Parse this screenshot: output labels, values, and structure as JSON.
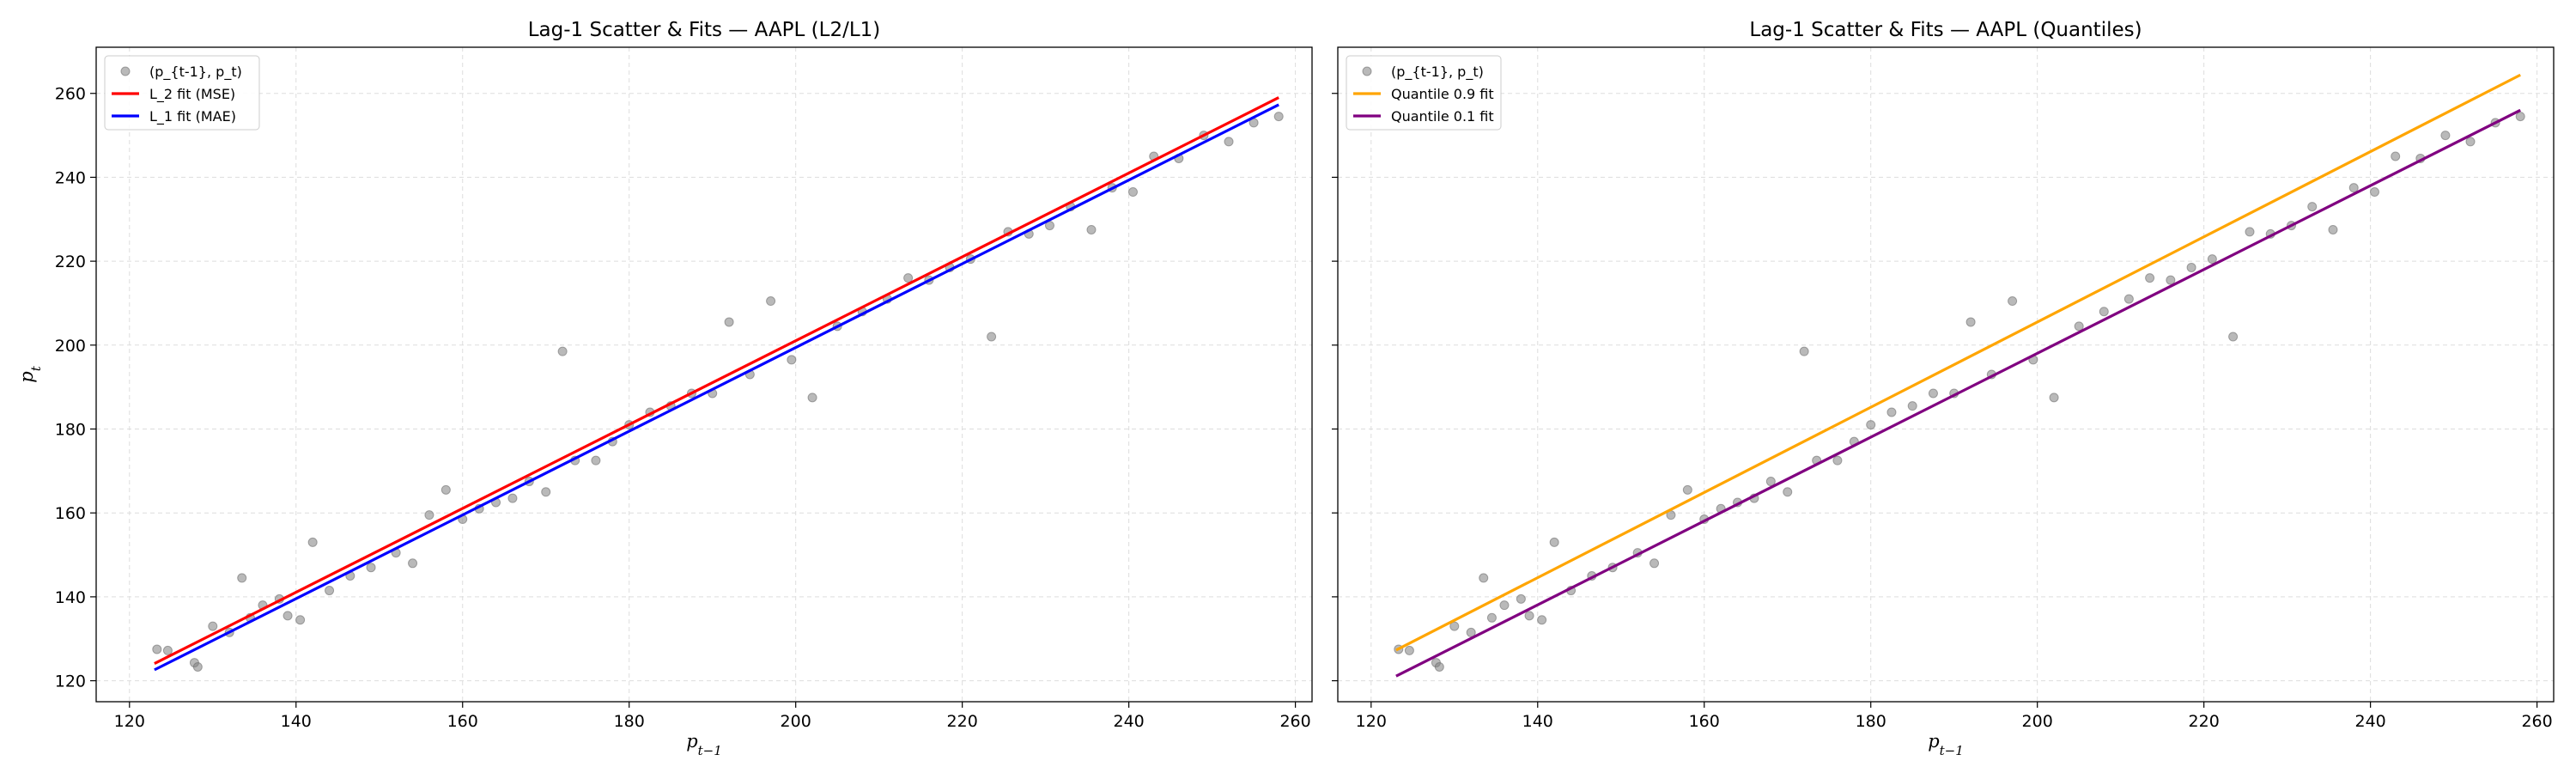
{
  "chart_data": [
    {
      "type": "scatter",
      "title": "Lag-1 Scatter & Fits — AAPL (L2/L1)",
      "xlabel": "p_{t-1}",
      "ylabel": "p_t",
      "xlim": [
        116,
        262
      ],
      "ylim": [
        115,
        271
      ],
      "xticks": [
        120,
        140,
        160,
        180,
        200,
        220,
        240,
        260
      ],
      "yticks": [
        120,
        140,
        160,
        180,
        200,
        220,
        240,
        260
      ],
      "grid": true,
      "legend_position": "upper-left",
      "series": [
        {
          "name": "(p_{t-1}, p_t)",
          "kind": "scatter",
          "color": "#808080",
          "points": [
            [
              123.3,
              127.5
            ],
            [
              124.6,
              127.2
            ],
            [
              127.8,
              124.3
            ],
            [
              128.2,
              123.3
            ],
            [
              130.0,
              133.0
            ],
            [
              132.0,
              131.5
            ],
            [
              133.5,
              144.5
            ],
            [
              134.5,
              135.0
            ],
            [
              136.0,
              138.0
            ],
            [
              138.0,
              139.5
            ],
            [
              139.0,
              135.5
            ],
            [
              140.5,
              134.5
            ],
            [
              142.0,
              153.0
            ],
            [
              144.0,
              141.5
            ],
            [
              146.5,
              145.0
            ],
            [
              149.0,
              147.0
            ],
            [
              152.0,
              150.5
            ],
            [
              154.0,
              148.0
            ],
            [
              156.0,
              159.5
            ],
            [
              158.0,
              165.5
            ],
            [
              160.0,
              158.5
            ],
            [
              162.0,
              161.0
            ],
            [
              164.0,
              162.5
            ],
            [
              166.0,
              163.5
            ],
            [
              168.0,
              167.5
            ],
            [
              170.0,
              165.0
            ],
            [
              172.0,
              198.5
            ],
            [
              173.5,
              172.5
            ],
            [
              176.0,
              172.5
            ],
            [
              178.0,
              177.0
            ],
            [
              180.0,
              181.0
            ],
            [
              182.5,
              184.0
            ],
            [
              185.0,
              185.5
            ],
            [
              187.5,
              188.5
            ],
            [
              190.0,
              188.5
            ],
            [
              192.0,
              205.5
            ],
            [
              194.5,
              193.0
            ],
            [
              197.0,
              210.5
            ],
            [
              199.5,
              196.5
            ],
            [
              202.0,
              187.5
            ],
            [
              205.0,
              204.5
            ],
            [
              208.0,
              208.0
            ],
            [
              211.0,
              211.0
            ],
            [
              213.5,
              216.0
            ],
            [
              216.0,
              215.5
            ],
            [
              218.5,
              218.5
            ],
            [
              221.0,
              220.5
            ],
            [
              223.5,
              202.0
            ],
            [
              225.5,
              227.0
            ],
            [
              228.0,
              226.5
            ],
            [
              230.5,
              228.5
            ],
            [
              233.0,
              233.0
            ],
            [
              235.5,
              227.5
            ],
            [
              238.0,
              237.5
            ],
            [
              240.5,
              236.5
            ],
            [
              243.0,
              245.0
            ],
            [
              246.0,
              244.5
            ],
            [
              249.0,
              250.0
            ],
            [
              252.0,
              248.5
            ],
            [
              255.0,
              253.0
            ],
            [
              258.0,
              254.5
            ]
          ]
        },
        {
          "name": "L_2 fit (MSE)",
          "kind": "line",
          "color": "#ff0000",
          "x": [
            123,
            258
          ],
          "y": [
            124.1,
            259.0
          ]
        },
        {
          "name": "L_1 fit (MAE)",
          "kind": "line",
          "color": "#0000ff",
          "x": [
            123,
            258
          ],
          "y": [
            122.6,
            257.3
          ]
        }
      ]
    },
    {
      "type": "scatter",
      "title": "Lag-1 Scatter & Fits — AAPL (Quantiles)",
      "xlabel": "p_{t-1}",
      "ylabel": "",
      "xlim": [
        116,
        262
      ],
      "ylim": [
        115,
        271
      ],
      "xticks": [
        120,
        140,
        160,
        180,
        200,
        220,
        240,
        260
      ],
      "yticks": [
        120,
        140,
        160,
        180,
        200,
        220,
        240,
        260
      ],
      "grid": true,
      "legend_position": "upper-left",
      "series": [
        {
          "name": "(p_{t-1}, p_t)",
          "kind": "scatter",
          "color": "#808080",
          "points": [
            [
              123.3,
              127.5
            ],
            [
              124.6,
              127.2
            ],
            [
              127.8,
              124.3
            ],
            [
              128.2,
              123.3
            ],
            [
              130.0,
              133.0
            ],
            [
              132.0,
              131.5
            ],
            [
              133.5,
              144.5
            ],
            [
              134.5,
              135.0
            ],
            [
              136.0,
              138.0
            ],
            [
              138.0,
              139.5
            ],
            [
              139.0,
              135.5
            ],
            [
              140.5,
              134.5
            ],
            [
              142.0,
              153.0
            ],
            [
              144.0,
              141.5
            ],
            [
              146.5,
              145.0
            ],
            [
              149.0,
              147.0
            ],
            [
              152.0,
              150.5
            ],
            [
              154.0,
              148.0
            ],
            [
              156.0,
              159.5
            ],
            [
              158.0,
              165.5
            ],
            [
              160.0,
              158.5
            ],
            [
              162.0,
              161.0
            ],
            [
              164.0,
              162.5
            ],
            [
              166.0,
              163.5
            ],
            [
              168.0,
              167.5
            ],
            [
              170.0,
              165.0
            ],
            [
              172.0,
              198.5
            ],
            [
              173.5,
              172.5
            ],
            [
              176.0,
              172.5
            ],
            [
              178.0,
              177.0
            ],
            [
              180.0,
              181.0
            ],
            [
              182.5,
              184.0
            ],
            [
              185.0,
              185.5
            ],
            [
              187.5,
              188.5
            ],
            [
              190.0,
              188.5
            ],
            [
              192.0,
              205.5
            ],
            [
              194.5,
              193.0
            ],
            [
              197.0,
              210.5
            ],
            [
              199.5,
              196.5
            ],
            [
              202.0,
              187.5
            ],
            [
              205.0,
              204.5
            ],
            [
              208.0,
              208.0
            ],
            [
              211.0,
              211.0
            ],
            [
              213.5,
              216.0
            ],
            [
              216.0,
              215.5
            ],
            [
              218.5,
              218.5
            ],
            [
              221.0,
              220.5
            ],
            [
              223.5,
              202.0
            ],
            [
              225.5,
              227.0
            ],
            [
              228.0,
              226.5
            ],
            [
              230.5,
              228.5
            ],
            [
              233.0,
              233.0
            ],
            [
              235.5,
              227.5
            ],
            [
              238.0,
              237.5
            ],
            [
              240.5,
              236.5
            ],
            [
              243.0,
              245.0
            ],
            [
              246.0,
              244.5
            ],
            [
              249.0,
              250.0
            ],
            [
              252.0,
              248.5
            ],
            [
              255.0,
              253.0
            ],
            [
              258.0,
              254.5
            ]
          ]
        },
        {
          "name": "Quantile 0.9 fit",
          "kind": "line",
          "color": "#ffa500",
          "x": [
            123,
            258
          ],
          "y": [
            127.3,
            264.4
          ]
        },
        {
          "name": "Quantile 0.1 fit",
          "kind": "line",
          "color": "#800080",
          "x": [
            123,
            258
          ],
          "y": [
            121.1,
            256.0
          ]
        }
      ]
    }
  ]
}
